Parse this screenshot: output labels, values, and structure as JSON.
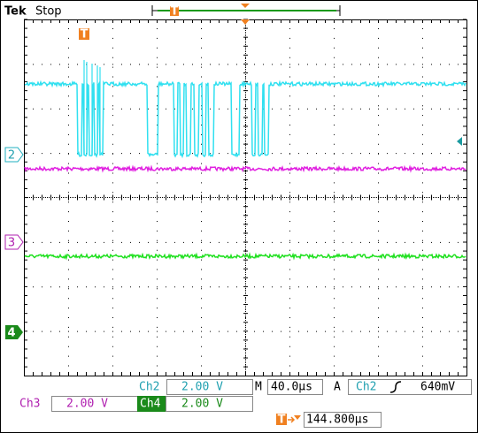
{
  "header": {
    "brand": "Tek",
    "status": "Stop"
  },
  "trigger_marker": "T",
  "channel_markers": [
    "2",
    "3",
    "4"
  ],
  "readouts": {
    "row1": {
      "ch2_label": "Ch2",
      "ch2_scale": "2.00 V",
      "timebase_label": "M",
      "timebase": "40.0µs",
      "trigger_mode": "A",
      "trigger_source": "Ch2",
      "trigger_level": "640mV"
    },
    "row2": {
      "ch3_label": "Ch3",
      "ch3_scale": "2.00 V",
      "ch4_label": "Ch4",
      "ch4_scale": "2.00 V"
    },
    "row3": {
      "trigger_position": "144.800µs"
    }
  }
}
